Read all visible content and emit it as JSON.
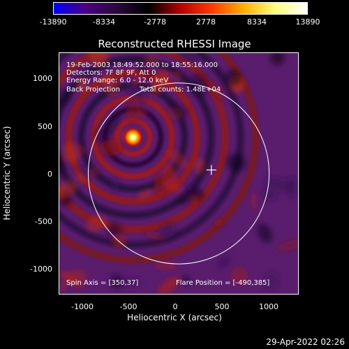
{
  "colorbar": {
    "ticks": [
      "-13890",
      "-8334",
      "-2778",
      "2778",
      "8334",
      "13890"
    ],
    "colors": [
      "#0000ff",
      "#4b0082",
      "#2a0a3a",
      "#000000",
      "#b40000",
      "#ff3a00",
      "#ffb000",
      "#ffff80",
      "#ffffff"
    ]
  },
  "title": "Reconstructed RHESSI Image",
  "info": {
    "time_range": "19-Feb-2003 18:49:52.000 to 18:55:16.000",
    "detectors": "Detectors: 7F 8F 9F, Att 0",
    "energy": "Energy Range: 6.0 - 12.0 keV",
    "method": "Back Projection",
    "counts": "Total counts: 1.48E+04",
    "spin_axis": "Spin Axis = [350,37]",
    "flare_position": "Flare Position = [-490,385]"
  },
  "axes": {
    "xlabel": "Heliocentric X (arcsec)",
    "ylabel": "Heliocentric Y (arcsec)",
    "xlim": [
      -1280,
      1280
    ],
    "ylim": [
      -1280,
      1280
    ],
    "xticks": [
      "-1000",
      "-500",
      "0",
      "500",
      "1000"
    ],
    "yticks": [
      "1000",
      "500",
      "0",
      "-500",
      "-1000"
    ]
  },
  "plot": {
    "flare": {
      "x": -490,
      "y": 385
    },
    "spin_axis": {
      "x": 350,
      "y": 37
    },
    "solar_limb_radius_arcsec": 970,
    "limb_color": "#ffffff",
    "background_color": "#5a1d6e"
  },
  "timestamp": "29-Apr-2022 02:26"
}
